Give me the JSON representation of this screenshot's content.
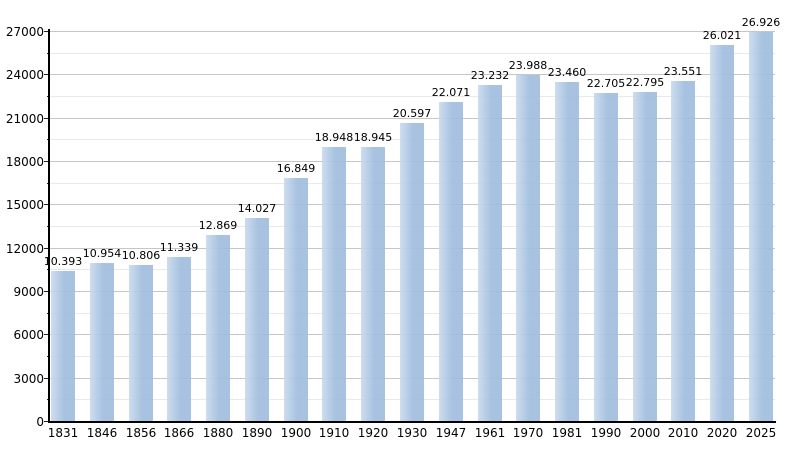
{
  "chart_data": {
    "type": "bar",
    "title": "",
    "xlabel": "",
    "ylabel": "",
    "categories": [
      "1831",
      "1846",
      "1856",
      "1866",
      "1880",
      "1890",
      "1900",
      "1910",
      "1920",
      "1930",
      "1947",
      "1961",
      "1970",
      "1981",
      "1990",
      "2000",
      "2010",
      "2020",
      "2025"
    ],
    "values": [
      10393,
      10954,
      10806,
      11339,
      12869,
      14027,
      16849,
      18948,
      18945,
      20597,
      22071,
      23232,
      23988,
      23460,
      22705,
      22795,
      23551,
      26021,
      26926
    ],
    "value_labels": [
      "10.393",
      "10.954",
      "10.806",
      "11.339",
      "12.869",
      "14.027",
      "16.849",
      "18.948",
      "18.945",
      "20.597",
      "22.071",
      "23.232",
      "23.988",
      "23.460",
      "22.705",
      "22.795",
      "23.551",
      "26.021",
      "26.926"
    ],
    "ylim": [
      0,
      27000
    ],
    "y_major_tick_interval": 3000,
    "y_minor_tick_interval": 1500,
    "y_tick_labels": [
      "0",
      "3000",
      "6000",
      "9000",
      "12000",
      "15000",
      "18000",
      "21000",
      "24000",
      "27000"
    ],
    "grid": "major-and-minor-horizontal",
    "legend_position": "none",
    "colors": {
      "bar_fill": "#aac3e1",
      "bar_fill_light": "#ccdbee",
      "grid_major": "#c6c6c6",
      "grid_minor": "#e9e9e9",
      "axis": "#000000",
      "text": "#000000",
      "background": "#ffffff"
    }
  }
}
